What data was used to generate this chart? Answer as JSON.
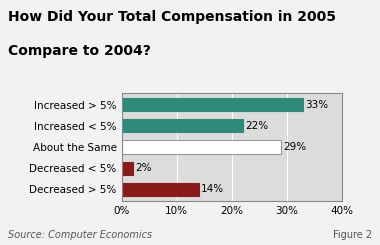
{
  "title_line1": "How Did Your Total Compensation in 2005",
  "title_line2": "Compare to 2004?",
  "categories": [
    "Increased > 5%",
    "Increased < 5%",
    "About the Same",
    "Decreased < 5%",
    "Decreased > 5%"
  ],
  "values": [
    33,
    22,
    29,
    2,
    14
  ],
  "bar_colors": [
    "#2e8b7a",
    "#2e8b7a",
    "#ffffff",
    "#8b1a1a",
    "#8b1a1a"
  ],
  "bar_edge_colors": [
    "#2e8b7a",
    "#2e8b7a",
    "#999999",
    "#8b1a1a",
    "#8b1a1a"
  ],
  "labels": [
    "33%",
    "22%",
    "29%",
    "2%",
    "14%"
  ],
  "xlim": [
    0,
    40
  ],
  "xticks": [
    0,
    10,
    20,
    30,
    40
  ],
  "xticklabels": [
    "0%",
    "10%",
    "20%",
    "30%",
    "40%"
  ],
  "source_text": "Source: Computer Economics",
  "figure_text": "Figure 2",
  "fig_bg_color": "#f2f2f2",
  "plot_bg_color": "#dcdcdc",
  "title_fontsize": 10,
  "tick_fontsize": 7.5,
  "label_fontsize": 7.5,
  "source_fontsize": 7
}
